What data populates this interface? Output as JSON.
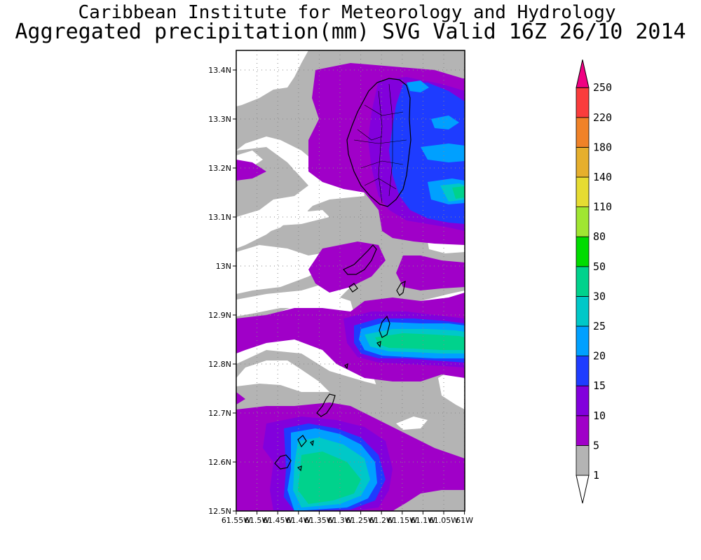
{
  "header": {
    "line1": "Caribbean Institute for Meteorology and Hydrology",
    "line2": "Aggregated precipitation(mm) SVG Valid 16Z 26/10 2014"
  },
  "map": {
    "lat_labels": [
      "13.4N",
      "13.3N",
      "13.2N",
      "13.1N",
      "13N",
      "12.9N",
      "12.8N",
      "12.7N",
      "12.6N",
      "12.5N"
    ],
    "lon_labels": [
      "61.55W",
      "61.5W",
      "61.45W",
      "61.4W",
      "61.35W",
      "61.3W",
      "61.25W",
      "61.2W",
      "61.15W",
      "61.1W",
      "61.05W",
      "61W"
    ],
    "lat_range": [
      12.5,
      13.44
    ],
    "lon_range": [
      -61.55,
      -61.0
    ],
    "grid": true
  },
  "legend": {
    "unit": "mm",
    "levels": [
      "1",
      "5",
      "10",
      "15",
      "20",
      "25",
      "30",
      "50",
      "80",
      "110",
      "140",
      "180",
      "220",
      "250"
    ],
    "colors": [
      "#b4b4b4",
      "#a000c8",
      "#8200dc",
      "#1e3cff",
      "#00a0ff",
      "#00c8c8",
      "#00d28c",
      "#00dc00",
      "#a0e632",
      "#e6dc32",
      "#e6af2d",
      "#f08228",
      "#fa3c3c",
      "#f00082"
    ]
  }
}
